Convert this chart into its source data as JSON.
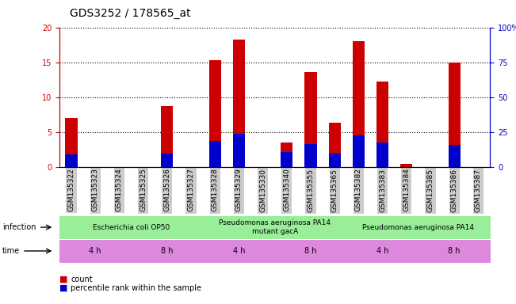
{
  "title": "GDS3252 / 178565_at",
  "samples": [
    "GSM135322",
    "GSM135323",
    "GSM135324",
    "GSM135325",
    "GSM135326",
    "GSM135327",
    "GSM135328",
    "GSM135329",
    "GSM135330",
    "GSM135340",
    "GSM135355",
    "GSM135365",
    "GSM135382",
    "GSM135383",
    "GSM135384",
    "GSM135385",
    "GSM135386",
    "GSM135387"
  ],
  "count_values": [
    7.0,
    0,
    0,
    0,
    8.7,
    0,
    15.3,
    18.2,
    0,
    3.5,
    13.6,
    6.4,
    18.0,
    12.3,
    0.5,
    0,
    15.0,
    0
  ],
  "percentile_values": [
    9.0,
    0,
    0,
    0,
    10.0,
    0,
    19.0,
    24.0,
    0,
    11.0,
    16.5,
    10.0,
    22.5,
    17.5,
    0,
    0,
    16.0,
    0
  ],
  "ylim_left": [
    0,
    20
  ],
  "ylim_right": [
    0,
    100
  ],
  "yticks_left": [
    0,
    5,
    10,
    15,
    20
  ],
  "yticks_right": [
    0,
    25,
    50,
    75,
    100
  ],
  "ytick_labels_right": [
    "0",
    "25",
    "50",
    "75",
    "100%"
  ],
  "bar_color_count": "#cc0000",
  "bar_color_percentile": "#0000cc",
  "bar_width": 0.5,
  "infection_groups": [
    {
      "label": "Escherichia coli OP50",
      "start": 0,
      "end": 6,
      "color": "#99ee99"
    },
    {
      "label": "Pseudomonas aeruginosa PA14\nmutant gacA",
      "start": 6,
      "end": 12,
      "color": "#99ee99"
    },
    {
      "label": "Pseudomonas aeruginosa PA14",
      "start": 12,
      "end": 18,
      "color": "#99ee99"
    }
  ],
  "time_groups": [
    {
      "label": "4 h",
      "start": 0,
      "end": 3,
      "color": "#dd88dd"
    },
    {
      "label": "8 h",
      "start": 3,
      "end": 6,
      "color": "#dd88dd"
    },
    {
      "label": "4 h",
      "start": 6,
      "end": 9,
      "color": "#dd88dd"
    },
    {
      "label": "8 h",
      "start": 9,
      "end": 12,
      "color": "#dd88dd"
    },
    {
      "label": "4 h",
      "start": 12,
      "end": 15,
      "color": "#dd88dd"
    },
    {
      "label": "8 h",
      "start": 15,
      "end": 18,
      "color": "#dd88dd"
    }
  ],
  "axis_color_left": "#cc0000",
  "axis_color_right": "#0000cc",
  "infection_label": "infection",
  "time_label": "time",
  "legend_count": "count",
  "legend_percentile": "percentile rank within the sample",
  "bg_color": "#ffffff",
  "tick_label_size": 6.5,
  "title_fontsize": 10,
  "xtick_bg_color": "#cccccc"
}
